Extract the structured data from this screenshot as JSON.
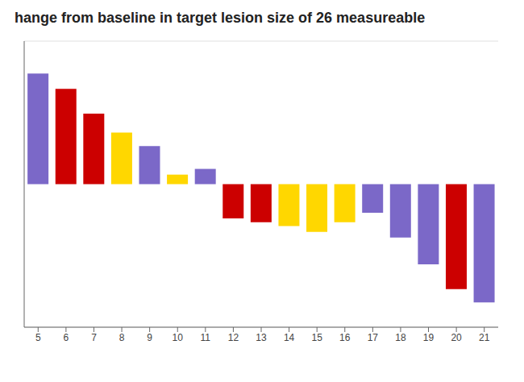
{
  "chart_data": {
    "type": "bar",
    "title": "hange from baseline in target lesion size of 26 measureable",
    "categories": [
      "5",
      "6",
      "7",
      "8",
      "9",
      "10",
      "11",
      "12",
      "13",
      "14",
      "15",
      "16",
      "17",
      "18",
      "19",
      "20",
      "21"
    ],
    "values": [
      58,
      50,
      37,
      27,
      20,
      5,
      8,
      -18,
      -20,
      -22,
      -25,
      -20,
      -15,
      -28,
      -42,
      -55,
      -62
    ],
    "colors": [
      "#7B68C8",
      "#CC0000",
      "#CC0000",
      "#FFD700",
      "#7B68C8",
      "#FFD700",
      "#7B68C8",
      "#CC0000",
      "#CC0000",
      "#FFD700",
      "#FFD700",
      "#FFD700",
      "#7B68C8",
      "#7B68C8",
      "#7B68C8",
      "#CC0000",
      "#7B68C8"
    ],
    "ylim": [
      -75,
      75
    ],
    "yticks": [
      -60,
      -40,
      -20,
      0,
      20,
      40,
      60
    ],
    "grid": true,
    "tick_labels": "x"
  }
}
